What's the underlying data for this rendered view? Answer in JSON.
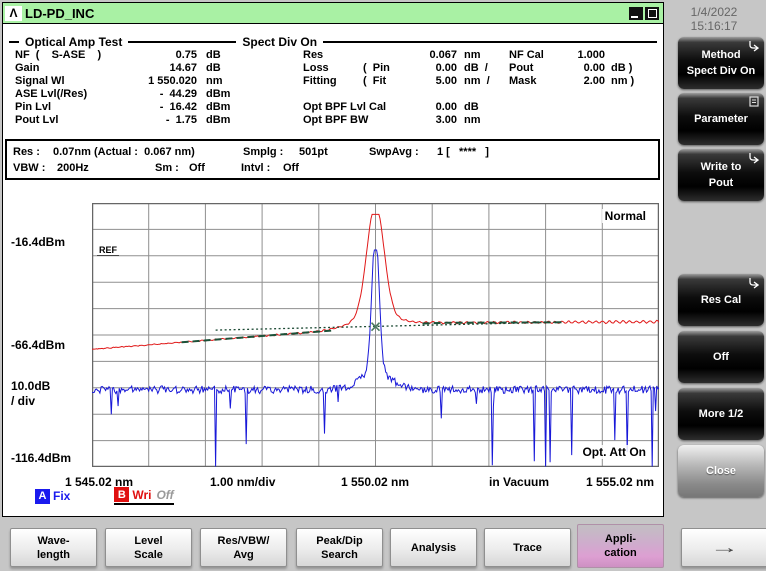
{
  "titlebar": {
    "logo": "Λ",
    "title": "LD-PD_INC"
  },
  "datetime": {
    "date": "1/4/2022",
    "time": "15:16:17"
  },
  "amp": {
    "section_title": "Optical Amp Test",
    "section_mode": "Spect Div On",
    "left": [
      {
        "label": "NF  (    S-ASE    )",
        "value": "0.75",
        "unit": "dB"
      },
      {
        "label": "Gain",
        "value": "14.67",
        "unit": "dB"
      },
      {
        "label": "Signal Wl",
        "value": "1 550.020",
        "unit": "nm"
      },
      {
        "label": "ASE Lvl(/Res)",
        "value": "-  44.29",
        "unit": "dBm"
      },
      {
        "label": "Pin Lvl",
        "value": "-  16.42",
        "unit": "dBm"
      },
      {
        "label": "Pout Lvl",
        "value": "-  1.75",
        "unit": "dBm"
      }
    ],
    "right": [
      {
        "label": "Res",
        "paren": "",
        "value": "0.067",
        "unit": "nm",
        "label2": "NF Cal",
        "value2": "1.000",
        "unit2": ""
      },
      {
        "label": "Loss",
        "paren": "(  Pin",
        "value": "0.00",
        "unit": "dB  /",
        "label2": "Pout",
        "value2": "0.00",
        "unit2": "dB )"
      },
      {
        "label": "Fitting",
        "paren": "(  Fit",
        "value": "5.00",
        "unit": "nm  /",
        "label2": "Mask",
        "value2": "2.00",
        "unit2": "nm )"
      },
      {
        "label": "Opt BPF Lvl Cal",
        "value": "0.00",
        "unit": "dB"
      },
      {
        "label": "Opt BPF BW",
        "value": "3.00",
        "unit": "nm"
      }
    ]
  },
  "status": {
    "res_label": "Res :",
    "res_value": "0.07nm (Actual :  0.067 nm)",
    "smplg_label": "Smplg :",
    "smplg_value": "501pt",
    "swpavg_label": "SwpAvg :",
    "swpavg_value": "1 [   ****   ]",
    "vbw_label": "VBW :",
    "vbw_value": "200Hz",
    "sm_label": "Sm :",
    "sm_value": "Off",
    "intvl_label": "Intvl :",
    "intvl_value": "Off"
  },
  "chart_data": {
    "type": "line",
    "title": "Optical spectrum — amplifier test traces",
    "samples": 501,
    "x": {
      "start_nm": 1545.02,
      "center_nm": 1550.02,
      "stop_nm": 1555.02,
      "nm_per_div": 1.0,
      "note": "in Vacuum"
    },
    "y": {
      "ref_dbm": -16.4,
      "db_per_div": 10.0,
      "top_label": "-16.4dBm",
      "mid_label": "-66.4dBm",
      "bottom_label": "-116.4dBm",
      "scale_label_1": "10.0dB",
      "scale_label_2": "/ div"
    },
    "grid": {
      "cols": 10,
      "rows": 10,
      "on": true,
      "color": "#8f8f8f"
    },
    "annotations": {
      "mode": "Normal",
      "ref": "REF",
      "opt_att": "Opt. Att On"
    },
    "x_tick_labels": [
      "1 545.02 nm",
      "1.00 nm/div",
      "1 550.02 nm",
      "in Vacuum",
      "1 555.02 nm"
    ],
    "series": [
      {
        "name": "trace-B-output",
        "color": "#e01818",
        "kind": "peak-over-baseline",
        "baseline_start_dbm": -63.0,
        "baseline_knee_nm": 1551.0,
        "baseline_knee_dbm": -50.6,
        "baseline_end_slope_db_per_nm": 0.12,
        "ripple_db": 0.7,
        "peak_nm": 1550.02,
        "peak_dbm": 0.3,
        "peak_width_nm": 0.21,
        "skirt_width_nm": 0.55
      },
      {
        "name": "trace-A-input",
        "color": "#1818d8",
        "kind": "noise-floor-with-peak",
        "floor_dbm": -82.0,
        "noise_db": 3.6,
        "spike_depth_db_max": 50,
        "peak_nm": 1550.02,
        "peak_dbm": -16.4,
        "peak_width_nm": 0.09,
        "skirt_width_nm": 0.38
      },
      {
        "name": "ase-fit-dotted",
        "color": "#1c4a34",
        "start_nm": 1547.2,
        "start_dbm": -54.0,
        "end_nm": 1553.2,
        "end_dbm": -50.3,
        "marker_nm": 1550.02,
        "marker_dbm": -52.4
      },
      {
        "name": "fit-mask-dashes",
        "color": "#1b5138",
        "segments_nm": [
          [
            1546.6,
            1549.3
          ],
          [
            1550.85,
            1553.3
          ]
        ]
      }
    ]
  },
  "trace_status": {
    "a_key": "A",
    "a_mode": "Fix",
    "b_key": "B",
    "b_mode": "Wri",
    "b_state": "Off"
  },
  "side_buttons": [
    {
      "line1": "Method",
      "line2": "Spect Div On"
    },
    {
      "line1": "Parameter",
      "line2": ""
    },
    {
      "line1": "Write to",
      "line2": "Pout"
    },
    {
      "line1": "Res Cal",
      "line2": ""
    },
    {
      "line1": "Off",
      "line2": ""
    },
    {
      "line1": "More 1/2",
      "line2": ""
    },
    {
      "line1": "Close",
      "line2": ""
    }
  ],
  "bottom_buttons": [
    {
      "line1": "Wave-",
      "line2": "length"
    },
    {
      "line1": "Level",
      "line2": "Scale"
    },
    {
      "line1": "Res/VBW/",
      "line2": "Avg"
    },
    {
      "line1": "Peak/Dip",
      "line2": "Search"
    },
    {
      "line1": "Analysis",
      "line2": ""
    },
    {
      "line1": "Trace",
      "line2": ""
    },
    {
      "line1": "Appli-",
      "line2": "cation"
    },
    {
      "line1": "→",
      "line2": ""
    }
  ]
}
